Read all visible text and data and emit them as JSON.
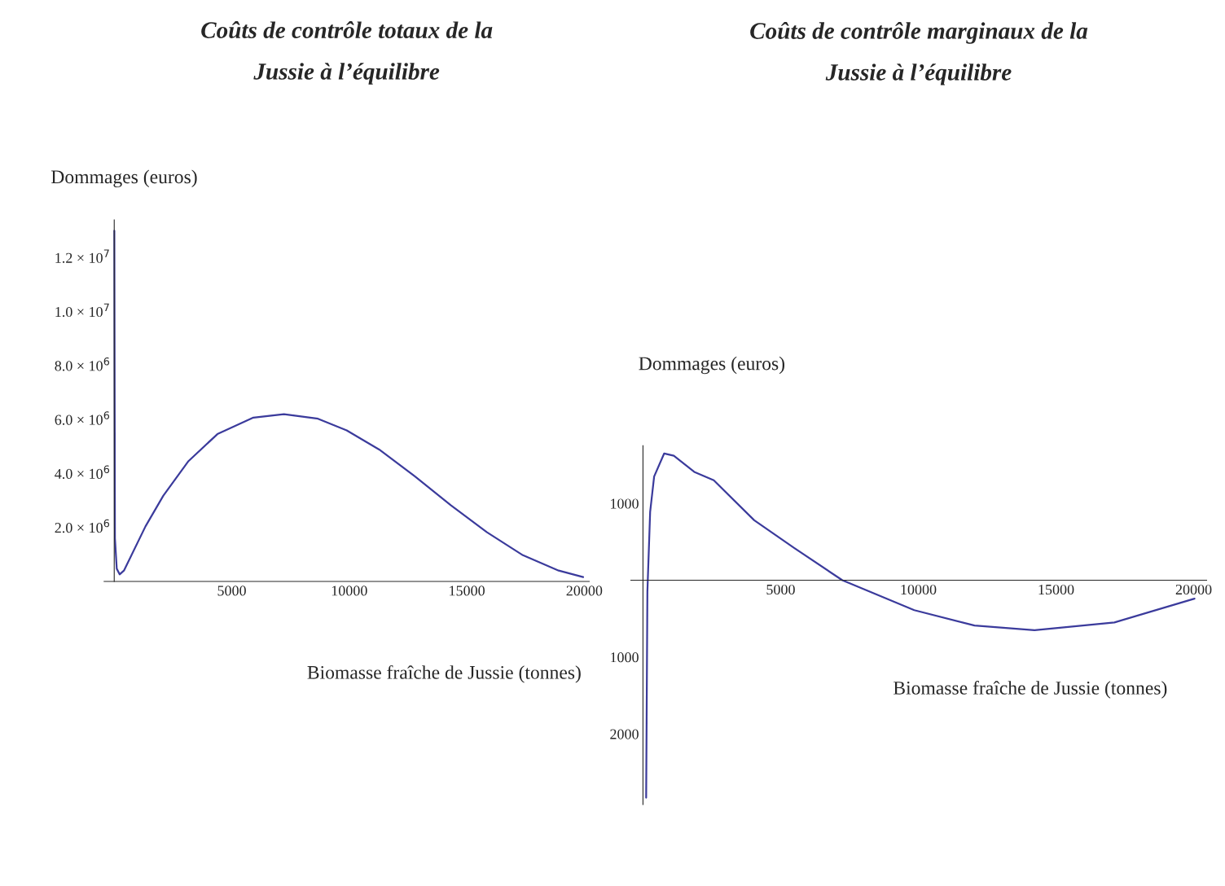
{
  "chart_data": [
    {
      "type": "line",
      "title": "Coûts de contrôle totaux de la\nJussie à l’équilibre",
      "ylabel": "Dommages (euros)",
      "xlabel": "Biomasse fraîche de Jussie (tonnes)",
      "xlim": [
        -430,
        20210
      ],
      "ylim": [
        0,
        13400000
      ],
      "xticks": [
        5000,
        10000,
        15000,
        {
          "value": 20000,
          "label": "20000"
        }
      ],
      "yticks": [
        {
          "value": 2000000,
          "label": "2.0 × 10$^{6}$"
        },
        {
          "value": 4000000,
          "label": "4.0 × 10$^{6}$"
        },
        {
          "value": 6000000,
          "label": "6.0 × 10$^{6}$"
        },
        {
          "value": 8000000,
          "label": "8.0 × 10$^{6}$"
        },
        {
          "value": 10000000,
          "label": "1.0 × 10$^{7}$"
        },
        {
          "value": 12000000,
          "label": "1.2 × 10$^{7}$"
        }
      ],
      "grid": false,
      "legend": false,
      "marker": "none",
      "line_style": "solid",
      "series": [
        {
          "color": "#3b3b9c",
          "x": [
            5,
            30,
            107,
            230,
            413,
            1330,
            2090,
            3160,
            4390,
            5920,
            7220,
            8670,
            9890,
            11270,
            12800,
            14330,
            15860,
            17390,
            18910,
            19950
          ],
          "values": [
            13000000,
            1600000,
            470000,
            260000,
            400000,
            2040000,
            3180000,
            4460000,
            5460000,
            6070000,
            6200000,
            6030000,
            5600000,
            4890000,
            3890000,
            2820000,
            1820000,
            970000,
            400000,
            160000
          ]
        }
      ]
    },
    {
      "type": "line",
      "title": "Coûts de contrôle marginaux de la\nJussie à l’équilibre",
      "ylabel": "Dommages (euros)",
      "xlabel": "Biomasse fraîche de Jussie (tonnes)",
      "xlim": [
        -440,
        20470
      ],
      "ylim": [
        -2920,
        1750
      ],
      "xticks": [
        5000,
        10000,
        15000,
        20000
      ],
      "yticks": [
        {
          "value": -2000,
          "label": "2000"
        },
        {
          "value": -1000,
          "label": "1000"
        },
        1000
      ],
      "grid": false,
      "legend": false,
      "marker": "none",
      "line_style": "solid",
      "series": [
        {
          "color": "#3b3b9c",
          "x": [
            115,
            160,
            260,
            405,
            770,
            1120,
            1860,
            2570,
            4040,
            5490,
            7240,
            9850,
            12040,
            14220,
            17120,
            20030
          ],
          "values": [
            -2830,
            -150,
            890,
            1350,
            1650,
            1620,
            1410,
            1300,
            780,
            420,
            0,
            -390,
            -590,
            -650,
            -550,
            -240
          ]
        }
      ]
    }
  ]
}
